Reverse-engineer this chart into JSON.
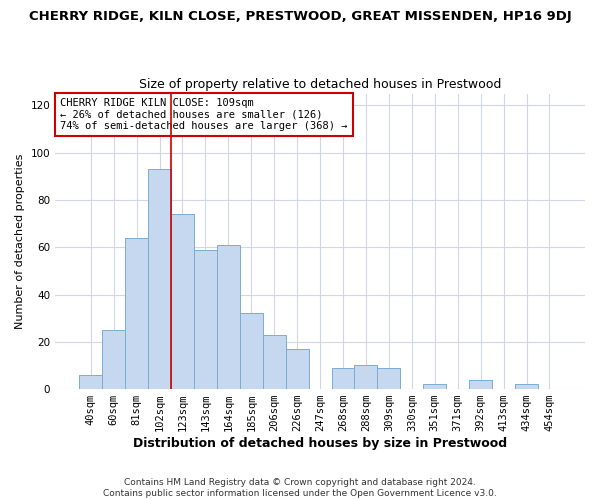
{
  "title": "CHERRY RIDGE, KILN CLOSE, PRESTWOOD, GREAT MISSENDEN, HP16 9DJ",
  "subtitle": "Size of property relative to detached houses in Prestwood",
  "xlabel": "Distribution of detached houses by size in Prestwood",
  "ylabel": "Number of detached properties",
  "bin_labels": [
    "40sqm",
    "60sqm",
    "81sqm",
    "102sqm",
    "123sqm",
    "143sqm",
    "164sqm",
    "185sqm",
    "206sqm",
    "226sqm",
    "247sqm",
    "268sqm",
    "288sqm",
    "309sqm",
    "330sqm",
    "351sqm",
    "371sqm",
    "392sqm",
    "413sqm",
    "434sqm",
    "454sqm"
  ],
  "bar_values": [
    6,
    25,
    64,
    93,
    74,
    59,
    61,
    32,
    23,
    17,
    0,
    9,
    10,
    9,
    0,
    2,
    0,
    4,
    0,
    2,
    0
  ],
  "bar_color": "#c5d8f0",
  "bar_edge_color": "#7aadd4",
  "vline_x_index": 3,
  "vline_color": "#cc0000",
  "annotation_line1": "CHERRY RIDGE KILN CLOSE: 109sqm",
  "annotation_line2": "← 26% of detached houses are smaller (126)",
  "annotation_line3": "74% of semi-detached houses are larger (368) →",
  "annotation_box_facecolor": "#ffffff",
  "annotation_box_edgecolor": "#cc0000",
  "ylim": [
    0,
    125
  ],
  "yticks": [
    0,
    20,
    40,
    60,
    80,
    100,
    120
  ],
  "background_color": "#ffffff",
  "grid_color": "#d0d8e8",
  "footer1": "Contains HM Land Registry data © Crown copyright and database right 2024.",
  "footer2": "Contains public sector information licensed under the Open Government Licence v3.0.",
  "title_fontsize": 9.5,
  "subtitle_fontsize": 9,
  "ylabel_fontsize": 8,
  "xlabel_fontsize": 9,
  "tick_fontsize": 7.5,
  "footer_fontsize": 6.5
}
